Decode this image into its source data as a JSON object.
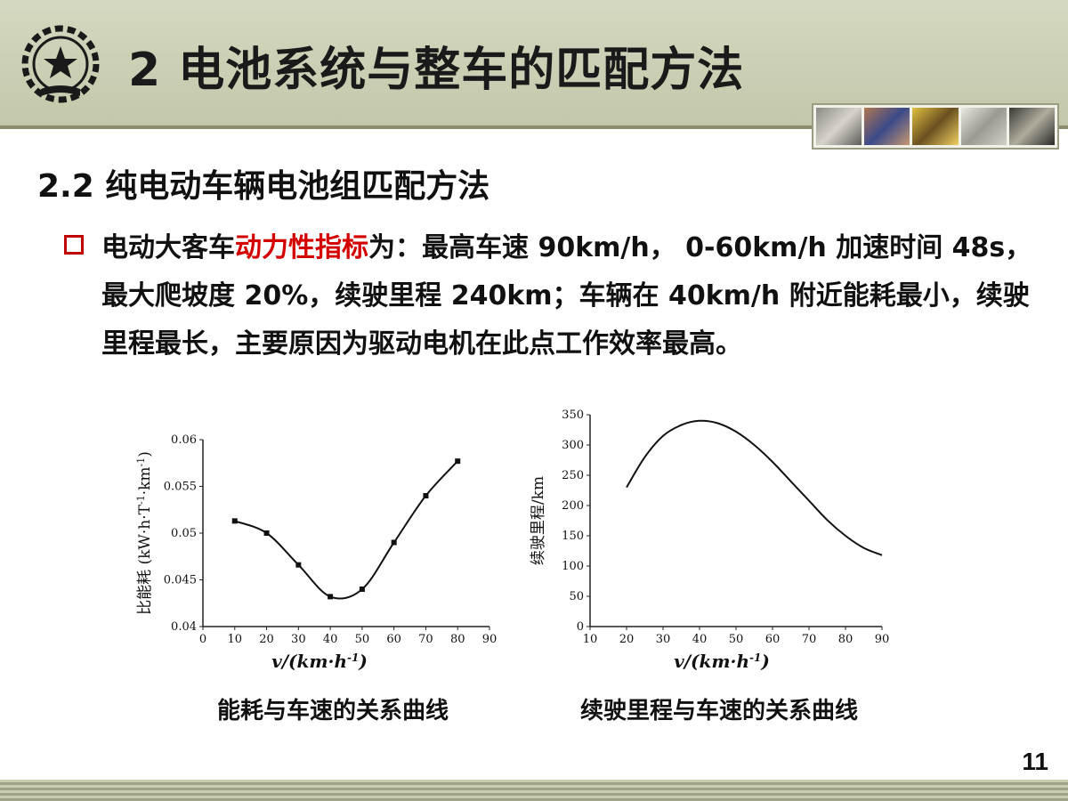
{
  "header": {
    "title": "2  电池系统与整车的匹配方法"
  },
  "section": {
    "subtitle": "2.2  纯电动车辆电池组匹配方法"
  },
  "body": {
    "prefix": "电动大客车",
    "highlight": "动力性指标",
    "rest": "为：最高车速 90km/h， 0-60km/h 加速时间 48s，最大爬坡度 20%，续驶里程 240km；车辆在 40km/h 附近能耗最小，续驶里程最长，主要原因为驱动电机在此点工作效率最高。"
  },
  "colors": {
    "header_bg": "#c8ccb0",
    "highlight": "#d40000",
    "bullet": "#c00000"
  },
  "chart_data": [
    {
      "type": "line",
      "title": "",
      "xlabel": "v/(km·h-1)",
      "ylabel": "比能耗 (kW·h·T-1·km-1)",
      "xlim": [
        0,
        90
      ],
      "ylim": [
        0.04,
        0.06
      ],
      "xticks": [
        "0",
        "10",
        "20",
        "30",
        "40",
        "50",
        "60",
        "70",
        "80",
        "90"
      ],
      "yticks": [
        "0.04",
        "0.045",
        "0.05",
        "0.055",
        "0.06"
      ],
      "markers": true,
      "series": [
        {
          "x": [
            10,
            20,
            30,
            40,
            50,
            60,
            70,
            80
          ],
          "y": [
            0.0513,
            0.05,
            0.0466,
            0.0432,
            0.044,
            0.049,
            0.054,
            0.0577
          ]
        }
      ],
      "caption": "能耗与车速的关系曲线"
    },
    {
      "type": "line",
      "title": "",
      "xlabel": "v/(km·h-1)",
      "ylabel": "续驶里程/km",
      "xlim": [
        10,
        90
      ],
      "ylim": [
        0,
        350
      ],
      "xticks": [
        "10",
        "20",
        "30",
        "40",
        "50",
        "60",
        "70",
        "80",
        "90"
      ],
      "yticks": [
        "0",
        "50",
        "100",
        "150",
        "200",
        "250",
        "300",
        "350"
      ],
      "markers": false,
      "series": [
        {
          "x": [
            20,
            25,
            30,
            35,
            40,
            45,
            50,
            55,
            60,
            65,
            70,
            75,
            80,
            85,
            90
          ],
          "y": [
            230,
            280,
            315,
            333,
            340,
            336,
            322,
            300,
            272,
            240,
            208,
            176,
            150,
            130,
            118
          ]
        }
      ],
      "caption": "续驶里程与车速的关系曲线"
    }
  ],
  "page": {
    "number": "11"
  }
}
